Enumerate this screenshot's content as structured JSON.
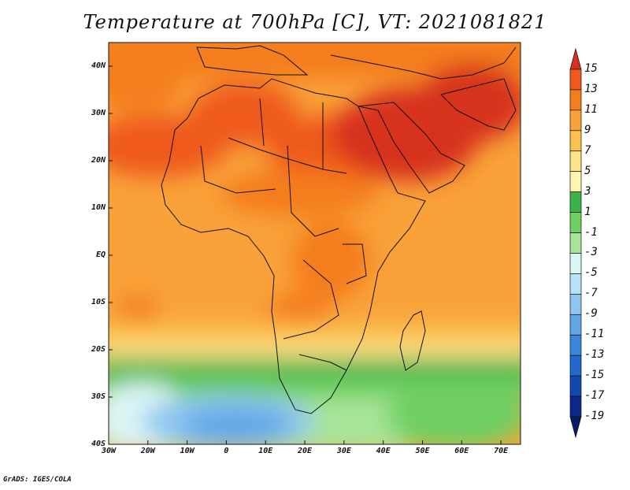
{
  "title": "Temperature at 700hPa [C], VT: 2021081821",
  "credit": "GrADS: IGES/COLA",
  "map": {
    "lon_range": [
      -30,
      75
    ],
    "lat_range": [
      -40,
      45
    ],
    "lat_ticks": [
      {
        "value": 40,
        "label": "40N"
      },
      {
        "value": 30,
        "label": "30N"
      },
      {
        "value": 20,
        "label": "20N"
      },
      {
        "value": 10,
        "label": "10N"
      },
      {
        "value": 0,
        "label": "EQ"
      },
      {
        "value": -10,
        "label": "10S"
      },
      {
        "value": -20,
        "label": "20S"
      },
      {
        "value": -30,
        "label": "30S"
      },
      {
        "value": -40,
        "label": "40S"
      }
    ],
    "lon_ticks": [
      {
        "value": -30,
        "label": "30W"
      },
      {
        "value": -20,
        "label": "20W"
      },
      {
        "value": -10,
        "label": "10W"
      },
      {
        "value": 0,
        "label": "0"
      },
      {
        "value": 10,
        "label": "10E"
      },
      {
        "value": 20,
        "label": "20E"
      },
      {
        "value": 30,
        "label": "30E"
      },
      {
        "value": 40,
        "label": "40E"
      },
      {
        "value": 50,
        "label": "50E"
      },
      {
        "value": 60,
        "label": "60E"
      },
      {
        "value": 70,
        "label": "70E"
      }
    ]
  },
  "colorbar": {
    "levels": [
      "15",
      "13",
      "11",
      "9",
      "7",
      "5",
      "3",
      "1",
      "-1",
      "-3",
      "-5",
      "-7",
      "-9",
      "-11",
      "-13",
      "-15",
      "-17",
      "-19"
    ],
    "colors": [
      "#d7301f",
      "#ef5a1c",
      "#f47d1e",
      "#f9a23a",
      "#fbc04e",
      "#fde28a",
      "#fdf5b0",
      "#3ab34a",
      "#6fcf62",
      "#a8e59a",
      "#dcf5f5",
      "#b8e2f8",
      "#8ec6f0",
      "#62a6e6",
      "#3b86dc",
      "#2068cf",
      "#1148b0",
      "#0a288c",
      "#081c63"
    ]
  }
}
